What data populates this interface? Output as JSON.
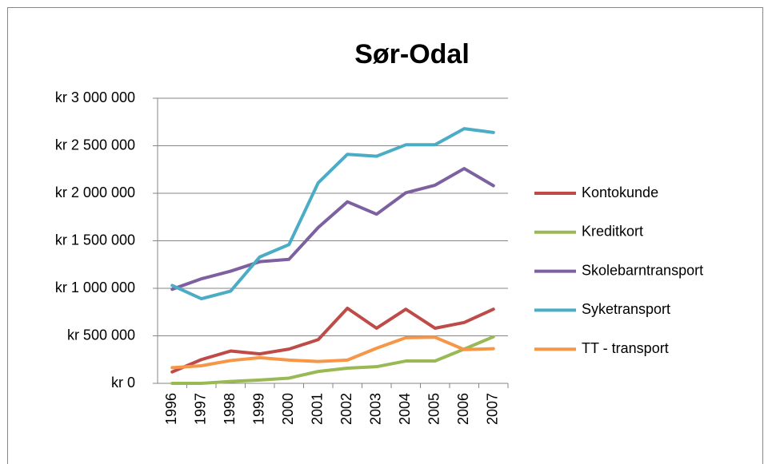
{
  "chart_data": {
    "type": "line",
    "title": "Sør-Odal",
    "categories": [
      "1996",
      "1997",
      "1998",
      "1999",
      "2000",
      "2001",
      "2002",
      "2003",
      "2004",
      "2005",
      "2006",
      "2007"
    ],
    "series": [
      {
        "name": "Kontokunde",
        "color": "#be4b48",
        "values": [
          120000,
          250000,
          340000,
          310000,
          360000,
          460000,
          790000,
          580000,
          780000,
          580000,
          640000,
          780000
        ]
      },
      {
        "name": "Kreditkort",
        "color": "#98b954",
        "values": [
          0,
          0,
          20000,
          35000,
          55000,
          125000,
          160000,
          175000,
          235000,
          235000,
          360000,
          490000
        ]
      },
      {
        "name": "Skolebarntransport",
        "color": "#7d60a0",
        "values": [
          990000,
          1100000,
          1180000,
          1280000,
          1305000,
          1640000,
          1910000,
          1780000,
          2005000,
          2085000,
          2260000,
          2080000
        ]
      },
      {
        "name": "Syketransport",
        "color": "#4bacc6",
        "values": [
          1030000,
          890000,
          970000,
          1330000,
          1460000,
          2110000,
          2410000,
          2390000,
          2510000,
          2510000,
          2680000,
          2640000
        ]
      },
      {
        "name": "TT - transport",
        "color": "#f79646",
        "values": [
          165000,
          185000,
          240000,
          270000,
          245000,
          230000,
          245000,
          370000,
          480000,
          485000,
          355000,
          365000
        ]
      }
    ],
    "ylim": [
      0,
      3000000
    ],
    "yticks": [
      {
        "value": 0,
        "label": "kr 0"
      },
      {
        "value": 500000,
        "label": "kr 500 000"
      },
      {
        "value": 1000000,
        "label": "kr 1 000 000"
      },
      {
        "value": 1500000,
        "label": "kr 1 500 000"
      },
      {
        "value": 2000000,
        "label": "kr 2 000 000"
      },
      {
        "value": 2500000,
        "label": "kr 2 500 000"
      },
      {
        "value": 3000000,
        "label": "kr 3 000 000"
      }
    ],
    "grid": true,
    "legend": "right"
  }
}
